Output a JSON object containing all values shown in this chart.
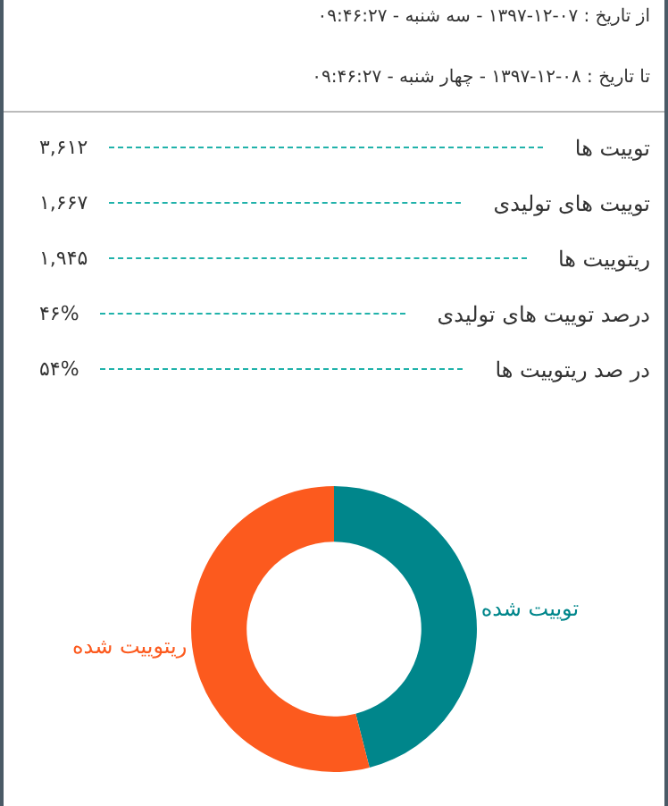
{
  "chart_data": [
    {
      "type": "other",
      "annotations": [
        "از تاریخ : ۰۷-۱۲-۱۳۹۷ - سه شنبه - ۰۹:۴۶:۲۷",
        "تا تاریخ : ۰۸-۱۲-۱۳۹۷ - چهار شنبه - ۰۹:۴۶:۲۷",
        "توییت ها",
        "۳,۶۱۲",
        "توییت های تولیدی",
        "۱,۶۶۷",
        "ریتوییت ها",
        "۱,۹۴۵",
        "درصد توییت های تولیدی",
        "۴۶%",
        "در صد ریتوییت ها",
        "۵۴%"
      ]
    },
    {
      "type": "donut",
      "categories": [
        "توییت شده",
        "ریتوییت شده"
      ],
      "values": [
        46,
        54
      ],
      "colors": [
        "#00868b",
        "#fc5a1e"
      ]
    }
  ]
}
